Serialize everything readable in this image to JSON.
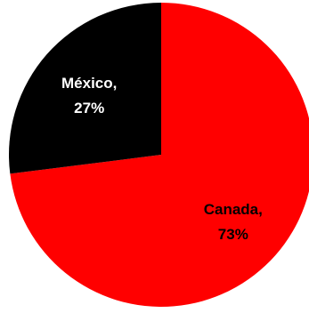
{
  "chart_data": {
    "type": "pie",
    "title": "",
    "legend": "none",
    "start_angle_deg": 0,
    "direction": "clockwise",
    "slices": [
      {
        "label": "Canada",
        "value": 73,
        "display_value": "73%",
        "color": "#ff0000",
        "text_color": "#000000"
      },
      {
        "label": "México",
        "value": 27,
        "display_value": "27%",
        "color": "#000000",
        "text_color": "#ffffff"
      }
    ]
  }
}
